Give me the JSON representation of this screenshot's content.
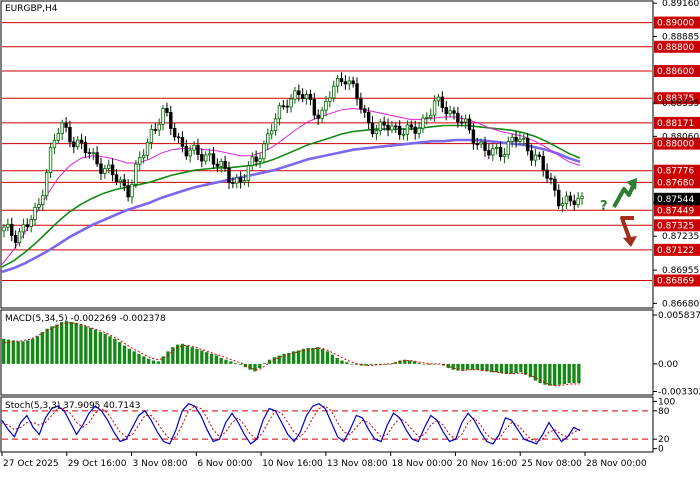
{
  "colors": {
    "bull": "#006400",
    "bear": "#000000",
    "level": "#cc0000",
    "ma_fast": "#e020e0",
    "ma_mid": "#138a13",
    "ma_slow": "#7b68ee",
    "macd_hist": "#138a13",
    "macd_signal": "#cc0000",
    "stoch_main": "#0000cc",
    "stoch_signal": "#cc0000",
    "arrow_up": "#2e7d32",
    "arrow_down": "#a0301a",
    "current_price_bg": "#000000"
  },
  "chart_data": [
    {
      "type": "candlestick",
      "title": "EURGBP,H4",
      "symbol": "EURGBP",
      "timeframe": "H4",
      "ylim": [
        0.8665,
        0.8917
      ],
      "price_ticks": [
        "0.89160",
        "0.88885",
        "0.88335",
        "0.88060",
        "0.87510",
        "0.87235",
        "0.86955",
        "0.86680"
      ],
      "price_ticks_values": [
        0.8916,
        0.88885,
        0.88335,
        0.8806,
        0.8751,
        0.87235,
        0.86955,
        0.8668
      ],
      "levels": [
        {
          "label": "0.89000",
          "value": 0.89
        },
        {
          "label": "0.88800",
          "value": 0.888
        },
        {
          "label": "0.88600",
          "value": 0.886
        },
        {
          "label": "0.88375",
          "value": 0.88375
        },
        {
          "label": "0.88171",
          "value": 0.88171
        },
        {
          "label": "0.88000",
          "value": 0.88
        },
        {
          "label": "0.87776",
          "value": 0.87776
        },
        {
          "label": "0.87680",
          "value": 0.8768
        },
        {
          "label": "0.87449",
          "value": 0.87449
        },
        {
          "label": "0.87325",
          "value": 0.87325
        },
        {
          "label": "0.87122",
          "value": 0.87122
        },
        {
          "label": "0.86869",
          "value": 0.86869
        }
      ],
      "current_price": {
        "label": "0.87544",
        "value": 0.87544
      },
      "x_labels": [
        "27 Oct 2025",
        "29 Oct 16:00",
        "3 Nov 08:00",
        "6 Nov 00:00",
        "10 Nov 16:00",
        "13 Nov 08:00",
        "18 Nov 00:00",
        "20 Nov 16:00",
        "25 Nov 08:00",
        "28 Nov 00:00"
      ],
      "close_path": [
        0.8728,
        0.8725,
        0.8732,
        0.8745,
        0.879,
        0.8815,
        0.8805,
        0.8795,
        0.8788,
        0.8778,
        0.877,
        0.8762,
        0.8785,
        0.881,
        0.8825,
        0.881,
        0.8795,
        0.879,
        0.8792,
        0.878,
        0.8772,
        0.8768,
        0.8785,
        0.88,
        0.882,
        0.8838,
        0.884,
        0.8835,
        0.8822,
        0.8845,
        0.8858,
        0.884,
        0.882,
        0.881,
        0.8815,
        0.8812,
        0.8808,
        0.882,
        0.8832,
        0.883,
        0.8822,
        0.881,
        0.88,
        0.879,
        0.8795,
        0.8805,
        0.8798,
        0.879,
        0.877,
        0.8755,
        0.875,
        0.8754
      ],
      "series": [
        {
          "name": "ma_fast",
          "values": [
            0.87,
            0.8712,
            0.8726,
            0.8742,
            0.8758,
            0.8772,
            0.8782,
            0.8788,
            0.879,
            0.8789,
            0.8787,
            0.8784,
            0.8784,
            0.8787,
            0.8792,
            0.8795,
            0.8796,
            0.8796,
            0.8795,
            0.8794,
            0.8792,
            0.879,
            0.879,
            0.8793,
            0.8798,
            0.8805,
            0.8812,
            0.8818,
            0.8822,
            0.8825,
            0.8828,
            0.8829,
            0.8828,
            0.8826,
            0.8824,
            0.8822,
            0.882,
            0.882,
            0.8821,
            0.8822,
            0.8822,
            0.882,
            0.8817,
            0.8813,
            0.881,
            0.8808,
            0.8806,
            0.8802,
            0.8797,
            0.8791,
            0.8785,
            0.8782
          ]
        },
        {
          "name": "ma_mid",
          "values": [
            0.8698,
            0.8703,
            0.871,
            0.8718,
            0.8727,
            0.8736,
            0.8744,
            0.875,
            0.8755,
            0.8759,
            0.8762,
            0.8764,
            0.8766,
            0.8768,
            0.8771,
            0.8774,
            0.8776,
            0.8778,
            0.8779,
            0.878,
            0.878,
            0.8781,
            0.8782,
            0.8784,
            0.8787,
            0.8791,
            0.8795,
            0.8799,
            0.8802,
            0.8805,
            0.8808,
            0.881,
            0.8811,
            0.8812,
            0.8812,
            0.8812,
            0.8812,
            0.8813,
            0.8814,
            0.8815,
            0.8815,
            0.8815,
            0.8814,
            0.8813,
            0.8812,
            0.8811,
            0.8809,
            0.8806,
            0.8802,
            0.8797,
            0.8792,
            0.8788
          ]
        },
        {
          "name": "ma_slow",
          "values": [
            0.8694,
            0.8697,
            0.8701,
            0.8706,
            0.8711,
            0.8717,
            0.8723,
            0.8728,
            0.8733,
            0.8737,
            0.8741,
            0.8745,
            0.8748,
            0.8751,
            0.8755,
            0.8758,
            0.8761,
            0.8764,
            0.8766,
            0.8768,
            0.877,
            0.8772,
            0.8774,
            0.8776,
            0.8778,
            0.8781,
            0.8784,
            0.8787,
            0.8789,
            0.8791,
            0.8793,
            0.8795,
            0.8796,
            0.8797,
            0.8798,
            0.8799,
            0.88,
            0.8801,
            0.8802,
            0.8802,
            0.8803,
            0.8803,
            0.8803,
            0.8802,
            0.8801,
            0.88,
            0.8799,
            0.8797,
            0.8795,
            0.8792,
            0.8788,
            0.8785
          ]
        }
      ]
    },
    {
      "type": "bar",
      "title": "MACD(5,34,5) -0.002269 -0.002378",
      "ylim": [
        -0.0036,
        0.0062
      ],
      "ticks": [
        "0.005837",
        "0.00",
        "-0.003302"
      ],
      "ticks_values": [
        0.005837,
        0.0,
        -0.003302
      ],
      "values": [
        0.003,
        0.0029,
        0.0028,
        0.0027,
        0.0027,
        0.0028,
        0.003,
        0.0033,
        0.0038,
        0.0042,
        0.0045,
        0.0047,
        0.005,
        0.0051,
        0.005,
        0.0049,
        0.0047,
        0.0045,
        0.0043,
        0.0041,
        0.0038,
        0.0036,
        0.0033,
        0.003,
        0.0026,
        0.0022,
        0.0018,
        0.0015,
        0.0012,
        0.0009,
        0.0006,
        0.0004,
        0.0003,
        0.0009,
        0.0015,
        0.002,
        0.0023,
        0.0024,
        0.0022,
        0.002,
        0.0018,
        0.0016,
        0.0014,
        0.0012,
        0.001,
        0.0007,
        0.0005,
        0.0003,
        0.0001,
        -0.0001,
        -0.0004,
        -0.0007,
        -0.0009,
        -0.0005,
        0.0001,
        0.0005,
        0.0008,
        0.001,
        0.0012,
        0.0013,
        0.0015,
        0.0016,
        0.0018,
        0.0019,
        0.0019,
        0.002,
        0.0018,
        0.0015,
        0.0011,
        0.0007,
        0.0004,
        0.0002,
        0.0,
        -0.0001,
        -0.0002,
        -0.0002,
        -0.0001,
        -0.0001,
        -0.0001,
        0.0,
        0.0,
        0.0002,
        0.0004,
        0.0005,
        0.0004,
        0.0003,
        0.0001,
        0.0,
        -0.0001,
        0.0,
        0.0,
        -0.0002,
        -0.0005,
        -0.0007,
        -0.0008,
        -0.0008,
        -0.0007,
        -0.0007,
        -0.0007,
        -0.0008,
        -0.0009,
        -0.001,
        -0.001,
        -0.0011,
        -0.0012,
        -0.0012,
        -0.0011,
        -0.001,
        -0.0013,
        -0.0016,
        -0.002,
        -0.0023,
        -0.0025,
        -0.0026,
        -0.0026,
        -0.0025,
        -0.0024,
        -0.0023,
        -0.0023,
        -0.0023
      ],
      "signal": [
        0.0025,
        0.0026,
        0.0027,
        0.0027,
        0.0028,
        0.0029,
        0.0031,
        0.0034,
        0.0037,
        0.004,
        0.0043,
        0.0046,
        0.0048,
        0.0049,
        0.0049,
        0.0048,
        0.0047,
        0.0045,
        0.0043,
        0.0041,
        0.0039,
        0.0037,
        0.0034,
        0.0031,
        0.0028,
        0.0024,
        0.002,
        0.0017,
        0.0014,
        0.0011,
        0.0008,
        0.0006,
        0.0005,
        0.0007,
        0.0011,
        0.0016,
        0.002,
        0.0022,
        0.0022,
        0.0021,
        0.0019,
        0.0017,
        0.0015,
        0.0013,
        0.0011,
        0.0009,
        0.0007,
        0.0005,
        0.0003,
        0.0001,
        -0.0002,
        -0.0005,
        -0.0007,
        -0.0006,
        -0.0002,
        0.0002,
        0.0006,
        0.0008,
        0.001,
        0.0012,
        0.0013,
        0.0015,
        0.0016,
        0.0017,
        0.0018,
        0.0019,
        0.0018,
        0.0016,
        0.0013,
        0.001,
        0.0007,
        0.0004,
        0.0002,
        0.0,
        -0.0001,
        -0.0002,
        -0.0002,
        -0.0001,
        -0.0001,
        0.0,
        0.0,
        0.0001,
        0.0003,
        0.0004,
        0.0004,
        0.0003,
        0.0002,
        0.0001,
        0.0,
        0.0,
        0.0,
        -0.0001,
        -0.0003,
        -0.0005,
        -0.0007,
        -0.0008,
        -0.0007,
        -0.0007,
        -0.0007,
        -0.0008,
        -0.0008,
        -0.0009,
        -0.001,
        -0.0011,
        -0.0011,
        -0.0012,
        -0.0011,
        -0.0011,
        -0.0012,
        -0.0014,
        -0.0017,
        -0.002,
        -0.0023,
        -0.0025,
        -0.0026,
        -0.0026,
        -0.0025,
        -0.0024,
        -0.0024,
        -0.0024
      ]
    },
    {
      "type": "line",
      "title": "Stoch(5,3,3) 37.9095 40.7143",
      "ylim": [
        -5,
        105
      ],
      "ticks": [
        "100",
        "80",
        "20",
        "0"
      ],
      "ticks_values": [
        100,
        80,
        20,
        0
      ],
      "levels": [
        80,
        20
      ],
      "series": [
        {
          "name": "main",
          "values": [
            60,
            40,
            25,
            55,
            70,
            45,
            30,
            65,
            85,
            90,
            80,
            55,
            30,
            50,
            75,
            90,
            80,
            60,
            35,
            15,
            20,
            45,
            70,
            80,
            60,
            35,
            15,
            10,
            40,
            80,
            95,
            90,
            70,
            40,
            15,
            20,
            55,
            75,
            55,
            30,
            10,
            20,
            60,
            85,
            80,
            55,
            30,
            15,
            35,
            70,
            90,
            95,
            85,
            55,
            25,
            15,
            40,
            70,
            65,
            40,
            20,
            15,
            50,
            75,
            65,
            40,
            20,
            15,
            45,
            70,
            60,
            35,
            15,
            20,
            55,
            75,
            60,
            35,
            15,
            10,
            30,
            65,
            60,
            40,
            20,
            15,
            10,
            30,
            55,
            35,
            15,
            25,
            45,
            38
          ]
        },
        {
          "name": "signal",
          "values": [
            55,
            50,
            40,
            45,
            55,
            55,
            50,
            55,
            70,
            85,
            85,
            75,
            55,
            45,
            55,
            75,
            85,
            75,
            55,
            35,
            25,
            30,
            50,
            70,
            70,
            55,
            35,
            20,
            25,
            50,
            80,
            90,
            85,
            65,
            40,
            25,
            35,
            55,
            65,
            50,
            30,
            20,
            35,
            60,
            80,
            75,
            55,
            35,
            25,
            40,
            65,
            85,
            90,
            80,
            55,
            35,
            30,
            45,
            60,
            55,
            40,
            25,
            30,
            50,
            65,
            55,
            40,
            25,
            30,
            50,
            60,
            50,
            30,
            20,
            30,
            55,
            65,
            50,
            30,
            20,
            20,
            40,
            55,
            50,
            35,
            20,
            15,
            20,
            35,
            40,
            30,
            25,
            35,
            41
          ]
        }
      ]
    }
  ]
}
